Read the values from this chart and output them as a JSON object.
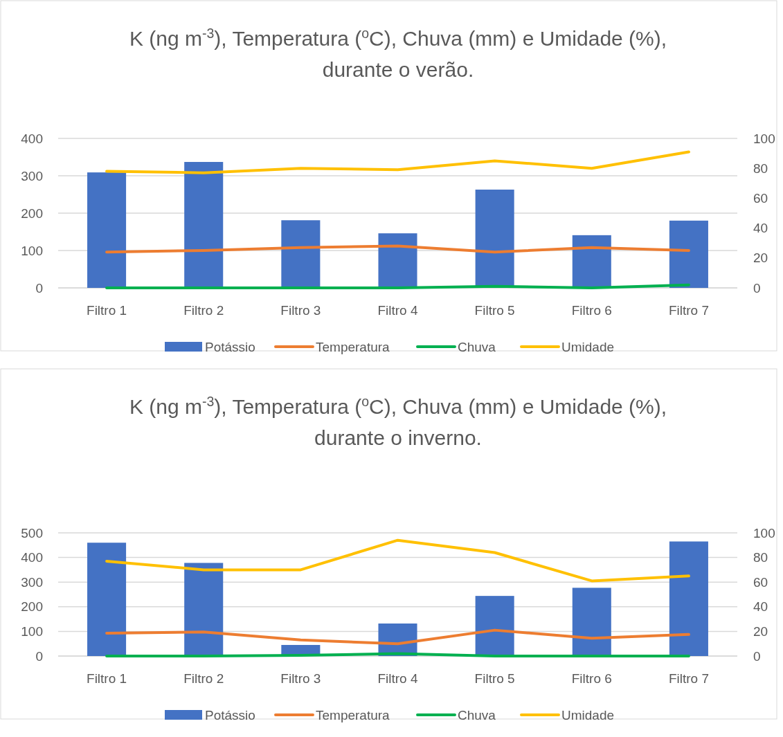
{
  "chart_data": [
    {
      "type": "bar",
      "title": "K (ng m$^{-3}$), Temperatura ($^{o}$C), Chuva (mm) e Umidade (%),\ndurante o verão.",
      "categories": [
        "Filtro 1",
        "Filtro 2",
        "Filtro 3",
        "Filtro 4",
        "Filtro 5",
        "Filtro 6",
        "Filtro 7"
      ],
      "series": [
        {
          "name": "Potássio",
          "color": "#4472c4",
          "values": [
            309,
            337,
            181,
            146,
            263,
            141,
            180
          ]
        },
        {
          "name": "Temperatura",
          "type": "line",
          "axis": "y2",
          "color": "#ed7d31",
          "values": [
            24,
            25,
            27,
            28,
            24,
            27,
            25
          ]
        },
        {
          "name": "Chuva",
          "type": "line",
          "axis": "y2",
          "color": "#00b050",
          "values": [
            0,
            0,
            0,
            0,
            1,
            0,
            2
          ]
        },
        {
          "name": "Umidade",
          "type": "line",
          "axis": "y2",
          "color": "#ffc000",
          "values": [
            78,
            77,
            80,
            79,
            85,
            80,
            91
          ]
        }
      ],
      "ylim": [
        0,
        400
      ],
      "yticks": [
        0,
        100,
        200,
        300,
        400
      ],
      "y2lim": [
        0,
        100
      ],
      "y2ticks": [
        0,
        20,
        40,
        60,
        80,
        100
      ],
      "grid": "y",
      "legend": "bottom"
    },
    {
      "type": "bar",
      "title": "K (ng m$^{-3}$), Temperatura ($^{o}$C), Chuva (mm) e Umidade (%),\ndurante o inverno.",
      "categories": [
        "Filtro 1",
        "Filtro 2",
        "Filtro 3",
        "Filtro 4",
        "Filtro 5",
        "Filtro 6",
        "Filtro 7"
      ],
      "series": [
        {
          "name": "Potássio",
          "color": "#4472c4",
          "values": [
            460,
            378,
            45,
            132,
            244,
            277,
            465
          ]
        },
        {
          "name": "Temperatura",
          "type": "line",
          "axis": "y2",
          "color": "#ed7d31",
          "values": [
            18.5,
            19.5,
            13,
            10,
            21,
            14.5,
            17.5
          ]
        },
        {
          "name": "Chuva",
          "type": "line",
          "axis": "y2",
          "color": "#00b050",
          "values": [
            0,
            0,
            0.5,
            2,
            0,
            0,
            0
          ]
        },
        {
          "name": "Umidade",
          "type": "line",
          "axis": "y2",
          "color": "#ffc000",
          "values": [
            77,
            70,
            70,
            94,
            84,
            61,
            65
          ]
        }
      ],
      "ylim": [
        0,
        500
      ],
      "yticks": [
        0,
        100,
        200,
        300,
        400,
        500
      ],
      "y2lim": [
        0,
        100
      ],
      "y2ticks": [
        0,
        20,
        40,
        60,
        80,
        100
      ],
      "grid": "y",
      "legend": "bottom"
    }
  ]
}
